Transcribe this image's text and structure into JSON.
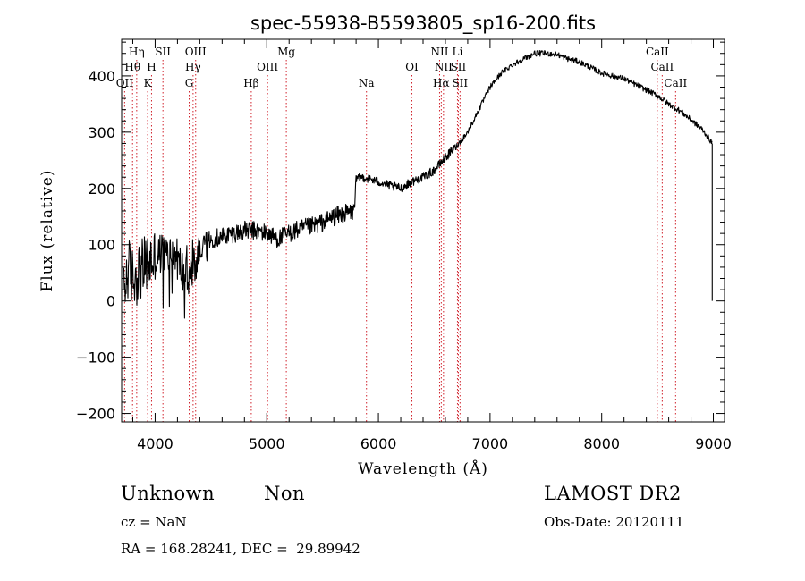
{
  "chart_data": {
    "type": "line",
    "title": "spec-55938-B5593805_sp16-200.fits",
    "xlabel": "Wavelength (Å)",
    "ylabel": "Flux (relative)",
    "xlim": [
      3700,
      9100
    ],
    "ylim": [
      -215,
      465
    ],
    "x_ticks": [
      4000,
      5000,
      6000,
      7000,
      8000,
      9000
    ],
    "y_ticks": [
      -200,
      -100,
      0,
      100,
      200,
      300,
      400
    ],
    "grid": false,
    "legend": "none",
    "series_color": "#000000",
    "line_marker_color": "#d0202a",
    "anchors": [
      [
        3720,
        10
      ],
      [
        3760,
        60
      ],
      [
        3800,
        40
      ],
      [
        3850,
        50
      ],
      [
        3900,
        60
      ],
      [
        3950,
        70
      ],
      [
        4000,
        75
      ],
      [
        4050,
        85
      ],
      [
        4100,
        80
      ],
      [
        4150,
        85
      ],
      [
        4200,
        75
      ],
      [
        4250,
        50
      ],
      [
        4300,
        40
      ],
      [
        4350,
        60
      ],
      [
        4400,
        90
      ],
      [
        4450,
        105
      ],
      [
        4500,
        110
      ],
      [
        4600,
        115
      ],
      [
        4700,
        120
      ],
      [
        4800,
        125
      ],
      [
        4900,
        125
      ],
      [
        5000,
        120
      ],
      [
        5100,
        110
      ],
      [
        5200,
        120
      ],
      [
        5300,
        128
      ],
      [
        5400,
        132
      ],
      [
        5500,
        140
      ],
      [
        5600,
        150
      ],
      [
        5700,
        155
      ],
      [
        5780,
        160
      ],
      [
        5800,
        215
      ],
      [
        5850,
        220
      ],
      [
        5900,
        218
      ],
      [
        6000,
        212
      ],
      [
        6100,
        205
      ],
      [
        6200,
        200
      ],
      [
        6300,
        212
      ],
      [
        6400,
        220
      ],
      [
        6500,
        232
      ],
      [
        6600,
        255
      ],
      [
        6700,
        275
      ],
      [
        6800,
        300
      ],
      [
        6900,
        340
      ],
      [
        7000,
        380
      ],
      [
        7100,
        405
      ],
      [
        7200,
        420
      ],
      [
        7300,
        430
      ],
      [
        7400,
        440
      ],
      [
        7500,
        440
      ],
      [
        7600,
        438
      ],
      [
        7700,
        430
      ],
      [
        7800,
        425
      ],
      [
        7900,
        415
      ],
      [
        8000,
        405
      ],
      [
        8100,
        400
      ],
      [
        8200,
        395
      ],
      [
        8300,
        385
      ],
      [
        8400,
        375
      ],
      [
        8500,
        365
      ],
      [
        8600,
        350
      ],
      [
        8700,
        338
      ],
      [
        8800,
        322
      ],
      [
        8900,
        305
      ],
      [
        8950,
        292
      ],
      [
        8990,
        280
      ]
    ],
    "lines": [
      {
        "label": "Hη",
        "wave": 3835,
        "row": 0
      },
      {
        "label": "SII",
        "wave": 4070,
        "row": 0
      },
      {
        "label": "OIII",
        "wave": 4363,
        "row": 0
      },
      {
        "label": "Mg",
        "wave": 5175,
        "row": 0
      },
      {
        "label": "NII",
        "wave": 6548,
        "row": 0
      },
      {
        "label": "Li",
        "wave": 6708,
        "row": 0
      },
      {
        "label": "CaII",
        "wave": 8498,
        "row": 0
      },
      {
        "label": "Hθ",
        "wave": 3798,
        "row": 1
      },
      {
        "label": "H",
        "wave": 3968,
        "row": 1
      },
      {
        "label": "Hγ",
        "wave": 4340,
        "row": 1
      },
      {
        "label": "OIII",
        "wave": 5007,
        "row": 1
      },
      {
        "label": "OI",
        "wave": 6300,
        "row": 1
      },
      {
        "label": "NII",
        "wave": 6583,
        "row": 1
      },
      {
        "label": "SII",
        "wave": 6716,
        "row": 1
      },
      {
        "label": "CaII",
        "wave": 8542,
        "row": 1
      },
      {
        "label": "OII",
        "wave": 3727,
        "row": 2
      },
      {
        "label": "K",
        "wave": 3933,
        "row": 2
      },
      {
        "label": "G",
        "wave": 4305,
        "row": 2
      },
      {
        "label": "Hβ",
        "wave": 4861,
        "row": 2
      },
      {
        "label": "Na",
        "wave": 5893,
        "row": 2
      },
      {
        "label": "Hα",
        "wave": 6563,
        "row": 2
      },
      {
        "label": "SII",
        "wave": 6731,
        "row": 2
      },
      {
        "label": "CaII",
        "wave": 8662,
        "row": 2
      }
    ]
  },
  "info": {
    "class_label": "Unknown",
    "subclass_label": "Non",
    "survey": "LAMOST DR2",
    "cz_text": "cz = NaN",
    "obs_date_text": "Obs-Date: 20120111",
    "radec_text": "RA = 168.28241, DEC =  29.89942"
  }
}
